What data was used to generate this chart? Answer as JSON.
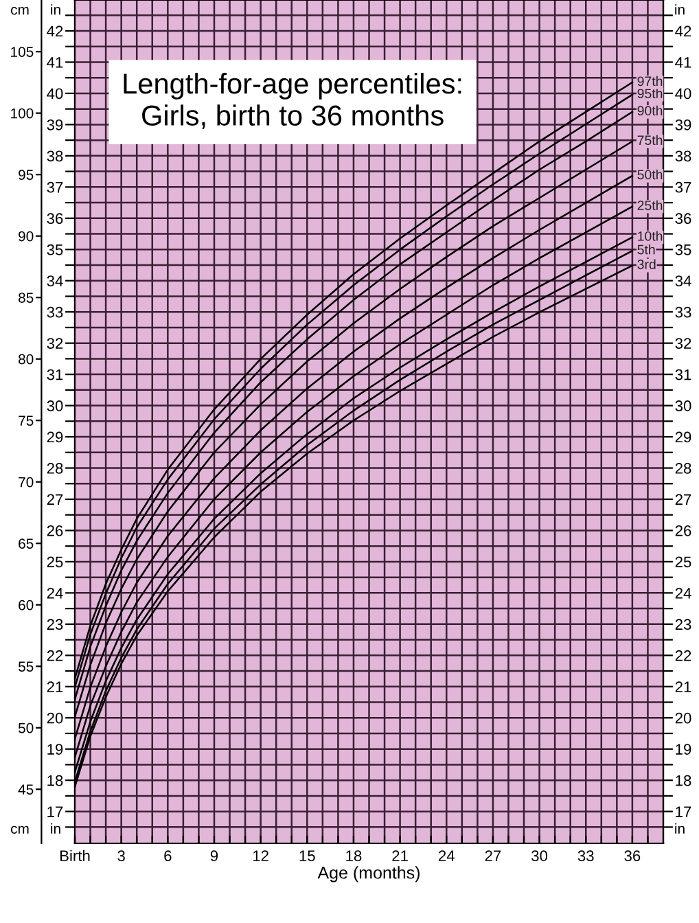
{
  "chart_data": {
    "type": "line",
    "title": "Length-for-age percentiles:\nGirls, birth to 36 months",
    "xlabel": "Age (months)",
    "ylabel": "cm",
    "y2label": "in",
    "y3label": "in",
    "x": [
      0,
      1,
      2,
      3,
      4,
      6,
      9,
      12,
      15,
      18,
      21,
      24,
      27,
      30,
      33,
      36
    ],
    "series": [
      {
        "name": "3rd",
        "color": "#000000",
        "values": [
          45.2,
          49.3,
          52.5,
          55.2,
          57.5,
          61.1,
          65.5,
          69.2,
          72.3,
          75.0,
          77.4,
          79.6,
          81.8,
          83.8,
          85.7,
          87.6
        ]
      },
      {
        "name": "5th",
        "color": "#000000",
        "values": [
          45.6,
          49.7,
          53.0,
          55.7,
          58.0,
          61.7,
          66.2,
          69.8,
          73.0,
          75.8,
          78.3,
          80.6,
          82.8,
          84.8,
          86.8,
          88.8
        ]
      },
      {
        "name": "10th",
        "color": "#000000",
        "values": [
          46.4,
          50.5,
          53.8,
          56.5,
          58.8,
          62.5,
          67.0,
          70.7,
          73.9,
          76.8,
          79.3,
          81.6,
          83.8,
          85.9,
          87.9,
          89.9
        ]
      },
      {
        "name": "25th",
        "color": "#000000",
        "values": [
          47.6,
          51.8,
          55.0,
          57.8,
          60.2,
          63.9,
          68.6,
          72.4,
          75.7,
          78.6,
          81.2,
          83.6,
          86.0,
          88.2,
          90.3,
          92.4
        ]
      },
      {
        "name": "50th",
        "color": "#000000",
        "values": [
          49.1,
          53.3,
          56.6,
          59.4,
          61.8,
          65.6,
          70.3,
          74.2,
          77.6,
          80.6,
          83.3,
          85.8,
          88.2,
          90.5,
          92.7,
          94.9
        ]
      },
      {
        "name": "75th",
        "color": "#000000",
        "values": [
          50.9,
          55.1,
          58.5,
          61.3,
          63.7,
          67.6,
          72.4,
          76.3,
          79.8,
          82.9,
          85.7,
          88.3,
          90.8,
          93.1,
          95.4,
          97.7
        ]
      },
      {
        "name": "90th",
        "color": "#000000",
        "values": [
          52.3,
          56.6,
          59.9,
          62.8,
          65.2,
          69.1,
          74.0,
          78.1,
          81.6,
          84.8,
          87.7,
          90.3,
          92.9,
          95.4,
          97.7,
          100.1
        ]
      },
      {
        "name": "95th",
        "color": "#000000",
        "values": [
          53.3,
          57.6,
          60.9,
          63.8,
          66.3,
          70.2,
          75.1,
          79.2,
          82.8,
          86.0,
          88.9,
          91.6,
          94.2,
          96.7,
          99.1,
          101.5
        ]
      },
      {
        "name": "97th",
        "color": "#000000",
        "values": [
          54.0,
          58.3,
          61.7,
          64.5,
          67.0,
          71.0,
          75.9,
          80.0,
          83.6,
          86.9,
          89.8,
          92.5,
          95.1,
          97.7,
          100.1,
          102.5
        ]
      }
    ],
    "xlim": [
      0,
      38
    ],
    "xticks": [
      {
        "value": 0,
        "label": "Birth"
      },
      {
        "value": 1,
        "label": null
      },
      {
        "value": 2,
        "label": null
      },
      3,
      {
        "value": 4,
        "label": null
      },
      {
        "value": 5,
        "label": null
      },
      6,
      {
        "value": 7,
        "label": null
      },
      {
        "value": 8,
        "label": null
      },
      9,
      {
        "value": 10,
        "label": null
      },
      {
        "value": 11,
        "label": null
      },
      12,
      {
        "value": 13,
        "label": null
      },
      {
        "value": 14,
        "label": null
      },
      15,
      {
        "value": 16,
        "label": null
      },
      {
        "value": 17,
        "label": null
      },
      18,
      {
        "value": 19,
        "label": null
      },
      {
        "value": 20,
        "label": null
      },
      21,
      {
        "value": 22,
        "label": null
      },
      {
        "value": 23,
        "label": null
      },
      24,
      {
        "value": 25,
        "label": null
      },
      {
        "value": 26,
        "label": null
      },
      27,
      {
        "value": 28,
        "label": null
      },
      {
        "value": 29,
        "label": null
      },
      30,
      {
        "value": 31,
        "label": null
      },
      {
        "value": 32,
        "label": null
      },
      33,
      {
        "value": 34,
        "label": null
      },
      {
        "value": 35,
        "label": null
      },
      36,
      {
        "value": 37,
        "label": null
      }
    ],
    "ylim": [
      40.6,
      109.2
    ],
    "yticks": [
      45,
      50,
      55,
      60,
      65,
      70,
      75,
      80,
      85,
      90,
      95,
      100,
      105
    ],
    "y2lim": [
      15.98,
      42.99
    ],
    "y2ticks": [
      {
        "value": 16.5,
        "label": null
      },
      17,
      {
        "value": 17.5,
        "label": null
      },
      18,
      {
        "value": 18.5,
        "label": null
      },
      19,
      {
        "value": 19.5,
        "label": null
      },
      20,
      {
        "value": 20.5,
        "label": null
      },
      21,
      {
        "value": 21.5,
        "label": null
      },
      22,
      {
        "value": 22.5,
        "label": null
      },
      23,
      {
        "value": 23.5,
        "label": null
      },
      24,
      {
        "value": 24.5,
        "label": null
      },
      25,
      {
        "value": 25.5,
        "label": null
      },
      26,
      {
        "value": 26.5,
        "label": null
      },
      27,
      {
        "value": 27.5,
        "label": null
      },
      28,
      {
        "value": 28.5,
        "label": null
      },
      29,
      {
        "value": 29.5,
        "label": null
      },
      30,
      {
        "value": 30.5,
        "label": null
      },
      31,
      {
        "value": 31.5,
        "label": null
      },
      32,
      {
        "value": 32.5,
        "label": null
      },
      33,
      {
        "value": 33.5,
        "label": null
      },
      34,
      {
        "value": 34.5,
        "label": null
      },
      35,
      {
        "value": 35.5,
        "label": null
      },
      36,
      {
        "value": 36.5,
        "label": null
      },
      37,
      {
        "value": 37.5,
        "label": null
      },
      38,
      {
        "value": 38.5,
        "label": null
      },
      39,
      {
        "value": 39.5,
        "label": null
      },
      40,
      {
        "value": 40.5,
        "label": null
      },
      41,
      {
        "value": 41.5,
        "label": null
      },
      42,
      {
        "value": 42.5,
        "label": null
      }
    ],
    "y3lim": [
      15.98,
      42.99
    ],
    "y3ticks": [
      {
        "value": 16.5,
        "label": null
      },
      17,
      {
        "value": 17.5,
        "label": null
      },
      18,
      {
        "value": 18.5,
        "label": null
      },
      19,
      {
        "value": 19.5,
        "label": null
      },
      20,
      {
        "value": 20.5,
        "label": null
      },
      21,
      {
        "value": 21.5,
        "label": null
      },
      22,
      {
        "value": 22.5,
        "label": null
      },
      23,
      {
        "value": 23.5,
        "label": null
      },
      24,
      {
        "value": 24.5,
        "label": null
      },
      25,
      {
        "value": 25.5,
        "label": null
      },
      26,
      {
        "value": 26.5,
        "label": null
      },
      27,
      {
        "value": 27.5,
        "label": null
      },
      28,
      {
        "value": 28.5,
        "label": null
      },
      29,
      {
        "value": 29.5,
        "label": null
      },
      30,
      {
        "value": 30.5,
        "label": null
      },
      31,
      {
        "value": 31.5,
        "label": null
      },
      32,
      {
        "value": 32.5,
        "label": null
      },
      33,
      {
        "value": 33.5,
        "label": null
      },
      34,
      {
        "value": 34.5,
        "label": null
      },
      35,
      {
        "value": 35.5,
        "label": null
      },
      36,
      {
        "value": 36.5,
        "label": null
      },
      37,
      {
        "value": 37.5,
        "label": null
      },
      38,
      {
        "value": 38.5,
        "label": null
      },
      39,
      {
        "value": 39.5,
        "label": null
      },
      40,
      {
        "value": 40.5,
        "label": null
      },
      41,
      {
        "value": 41.5,
        "label": null
      },
      42,
      {
        "value": 42.5,
        "label": null
      }
    ],
    "grid": true,
    "legend": false,
    "marker": "none",
    "line_style": "solid"
  }
}
